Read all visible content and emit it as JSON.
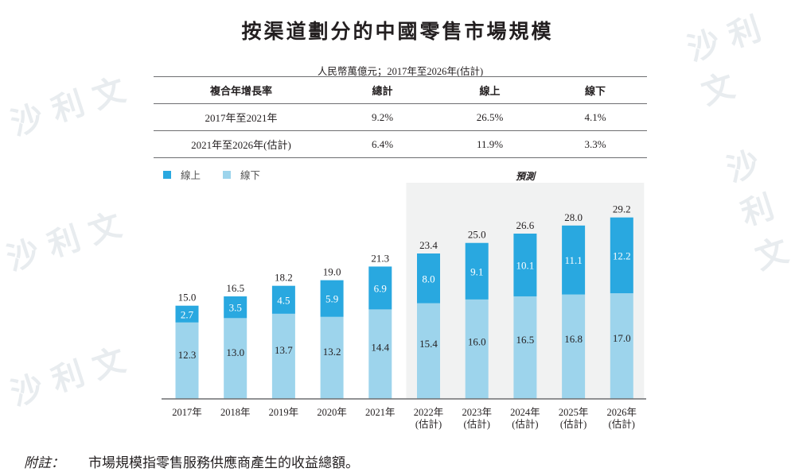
{
  "title": "按渠道劃分的中國零售市場規模",
  "unit_note": "人民幣萬億元；2017年至2026年(估計)",
  "cagr_table": {
    "headers": [
      "複合年增長率",
      "總計",
      "線上",
      "線下"
    ],
    "rows": [
      [
        "2017年至2021年",
        "9.2%",
        "26.5%",
        "4.1%"
      ],
      [
        "2021年至2026年(估計)",
        "6.4%",
        "11.9%",
        "3.3%"
      ]
    ]
  },
  "forecast_label": "預測",
  "footnote": {
    "label": "附註：",
    "text": "市場規模指零售服務供應商產生的收益總額。"
  },
  "watermark": "沙利文",
  "colors": {
    "online": "#29a8e0",
    "offline": "#9dd4ec",
    "forecast_bg": "#f1f2f2",
    "axis": "#6d6e71"
  },
  "chart_data": {
    "type": "bar",
    "stacked": true,
    "title": "按渠道劃分的中國零售市場規模",
    "xlabel": "",
    "ylabel": "人民幣萬億元",
    "categories": [
      "2017年",
      "2018年",
      "2019年",
      "2020年",
      "2021年",
      "2022年",
      "2023年",
      "2024年",
      "2025年",
      "2026年"
    ],
    "category_sublabels": [
      "",
      "",
      "",
      "",
      "",
      "(估計)",
      "(估計)",
      "(估計)",
      "(估計)",
      "(估計)"
    ],
    "series": [
      {
        "name": "線下",
        "values": [
          12.3,
          13.0,
          13.7,
          13.2,
          14.4,
          15.4,
          16.0,
          16.5,
          16.8,
          17.0
        ]
      },
      {
        "name": "線上",
        "values": [
          2.7,
          3.5,
          4.5,
          5.9,
          6.9,
          8.0,
          9.1,
          10.1,
          11.1,
          12.2
        ]
      }
    ],
    "totals": [
      15.0,
      16.5,
      18.2,
      19.0,
      21.3,
      23.4,
      25.0,
      26.6,
      28.0,
      29.2
    ],
    "legend": [
      "線上",
      "線下"
    ],
    "legend_position": "top-left",
    "forecast_start_category": "2022年",
    "ylim": [
      0,
      30
    ],
    "grid": false
  }
}
